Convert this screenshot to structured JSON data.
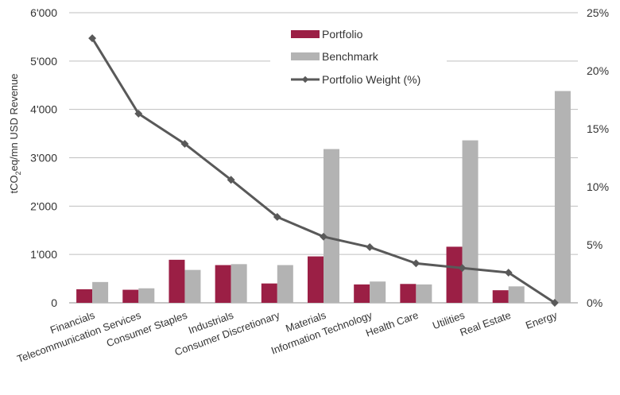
{
  "chart_data": {
    "type": "bar",
    "categories": [
      "Financials",
      "Telecommunication Services",
      "Consumer Staples",
      "Industrials",
      "Consumer Discretionary",
      "Materials",
      "Information Technology",
      "Health Care",
      "Utilities",
      "Real Estate",
      "Energy"
    ],
    "series": [
      {
        "name": "Portfolio",
        "type": "bar",
        "axis": "left",
        "color": "#9b1f45",
        "values": [
          280,
          270,
          890,
          780,
          400,
          960,
          380,
          390,
          1160,
          260,
          0
        ]
      },
      {
        "name": "Benchmark",
        "type": "bar",
        "axis": "left",
        "color": "#b3b3b3",
        "values": [
          430,
          300,
          680,
          800,
          780,
          3180,
          440,
          380,
          3360,
          340,
          4380
        ]
      },
      {
        "name": "Portfolio Weight (%)",
        "type": "line",
        "axis": "right",
        "color": "#595959",
        "values": [
          22.8,
          16.3,
          13.7,
          10.6,
          7.4,
          5.7,
          4.8,
          3.4,
          3.0,
          2.6,
          0.0
        ]
      }
    ],
    "ylabel_parts": {
      "pre": "tCO",
      "sub": "2",
      "post": "eq/mn USD Revenue"
    },
    "ylim": [
      0,
      6000
    ],
    "y_ticks": [
      0,
      1000,
      2000,
      3000,
      4000,
      5000,
      6000
    ],
    "y_tick_labels": [
      "0",
      "1'000",
      "2'000",
      "3'000",
      "4'000",
      "5'000",
      "6'000"
    ],
    "y2lim": [
      0,
      25
    ],
    "y2_ticks": [
      0,
      5,
      10,
      15,
      20,
      25
    ],
    "y2_tick_labels": [
      "0%",
      "5%",
      "10%",
      "15%",
      "20%",
      "25%"
    ],
    "grid": true,
    "legend": "top-center"
  }
}
